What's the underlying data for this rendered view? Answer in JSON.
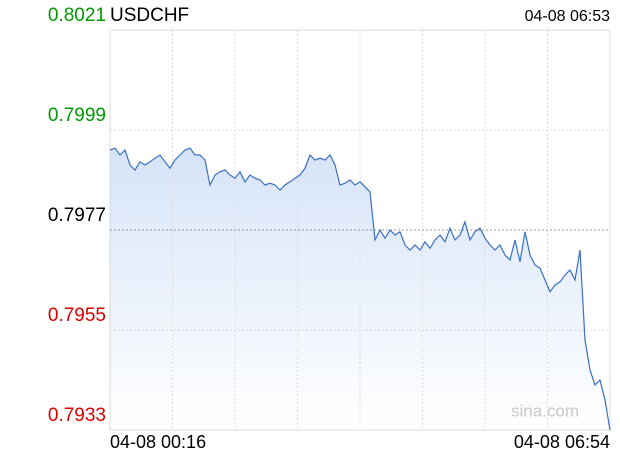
{
  "chart_data": {
    "type": "line",
    "title": "USDCHF",
    "timestamp": "04-08 06:53",
    "watermark": "sina.com",
    "x_labels": [
      "04-08 00:16",
      "04-08 06:54"
    ],
    "color": "#3a6fc4",
    "ylim": [
      0.7933,
      0.8021
    ],
    "yticks": [
      0.8021,
      0.7999,
      0.7977,
      0.7955,
      0.7933
    ],
    "ytick_colors": [
      "#009900",
      "#009900",
      "#000000",
      "#dd0000",
      "#dd0000"
    ],
    "baseline": 0.7977,
    "grid": true,
    "values": [
      0.79946,
      0.7995,
      0.79935,
      0.79946,
      0.79913,
      0.79902,
      0.7992,
      0.79913,
      0.7992,
      0.79928,
      0.79935,
      0.7992,
      0.79906,
      0.79924,
      0.79935,
      0.79946,
      0.7995,
      0.79935,
      0.79935,
      0.79924,
      0.79869,
      0.79891,
      0.79898,
      0.79902,
      0.79891,
      0.79884,
      0.79898,
      0.79876,
      0.79891,
      0.79884,
      0.7988,
      0.79869,
      0.79873,
      0.79869,
      0.79858,
      0.79869,
      0.79876,
      0.79884,
      0.79891,
      0.79906,
      0.79935,
      0.79924,
      0.79928,
      0.79924,
      0.79935,
      0.79913,
      0.79869,
      0.79873,
      0.7988,
      0.79869,
      0.79876,
      0.79865,
      0.79854,
      0.79748,
      0.7977,
      0.79752,
      0.7977,
      0.79759,
      0.79766,
      0.79737,
      0.79726,
      0.79737,
      0.79726,
      0.79744,
      0.7973,
      0.79748,
      0.79759,
      0.79744,
      0.79774,
      0.79748,
      0.79759,
      0.79788,
      0.79748,
      0.79766,
      0.79774,
      0.79752,
      0.79737,
      0.79726,
      0.79737,
      0.79715,
      0.79704,
      0.79748,
      0.797,
      0.79766,
      0.79715,
      0.79693,
      0.79686,
      0.7966,
      0.79634,
      0.79649,
      0.79656,
      0.79671,
      0.79682,
      0.7966,
      0.79726,
      0.79528,
      0.79462,
      0.79429,
      0.7944,
      0.79396,
      0.7933
    ]
  }
}
